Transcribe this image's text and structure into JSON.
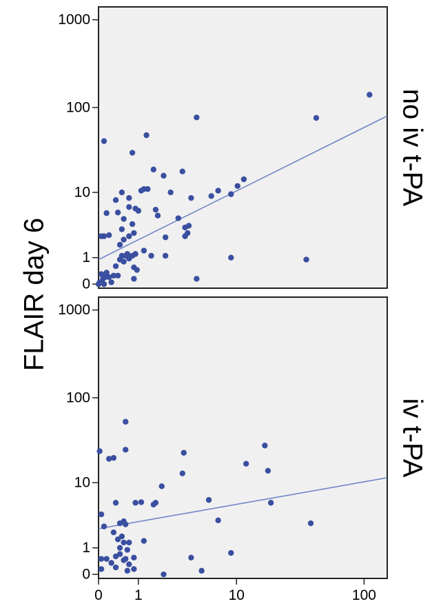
{
  "chart_data": {
    "type": "scatter",
    "ylabel": "FLAIR day 6",
    "xlabel": "",
    "x_scale": "log1p",
    "y_scale": "log1p",
    "xlim": [
      0,
      150
    ],
    "ylim": [
      -0.1,
      1400
    ],
    "x_ticks": [
      0,
      1,
      10,
      100
    ],
    "x_tick_labels": [
      "0",
      "1",
      "10",
      "100"
    ],
    "y_ticks": [
      0,
      1,
      10,
      100,
      1000
    ],
    "y_tick_labels": [
      "0",
      "1",
      "10",
      "100",
      "1000"
    ],
    "grid": false,
    "marker_color": "#3a4fa0",
    "line_color": "#6f85c8",
    "panel_background": "#f0f0f0",
    "panels": [
      {
        "label": "no iv t-PA",
        "fit_line": [
          [
            0,
            0.9
          ],
          [
            150,
            80
          ]
        ],
        "points": [
          [
            0,
            0
          ],
          [
            0.02,
            0.05
          ],
          [
            0.05,
            0.3
          ],
          [
            0.08,
            0.15
          ],
          [
            0.1,
            0
          ],
          [
            0.12,
            0.2
          ],
          [
            0.15,
            0.35
          ],
          [
            0.2,
            0.2
          ],
          [
            0.25,
            0.05
          ],
          [
            0.3,
            0.25
          ],
          [
            0.35,
            0.6
          ],
          [
            0.4,
            0.25
          ],
          [
            0.45,
            0.9
          ],
          [
            0.5,
            1.1
          ],
          [
            0.55,
            0.8
          ],
          [
            0.6,
            1.1
          ],
          [
            0.65,
            1.2
          ],
          [
            0.7,
            0.95
          ],
          [
            0.8,
            1.1
          ],
          [
            0.85,
            0.55
          ],
          [
            0.85,
            0.15
          ],
          [
            0.95,
            0.45
          ],
          [
            0.9,
            1.2
          ],
          [
            0.1,
            2.5
          ],
          [
            0.2,
            2.6
          ],
          [
            0.05,
            2.5
          ],
          [
            0.45,
            1.8
          ],
          [
            0.55,
            2.2
          ],
          [
            0.7,
            2.5
          ],
          [
            0.5,
            3.2
          ],
          [
            0.85,
            2.8
          ],
          [
            0.15,
            5.4
          ],
          [
            0.4,
            5.5
          ],
          [
            0.55,
            4.5
          ],
          [
            0.7,
            6.5
          ],
          [
            0.8,
            3.8
          ],
          [
            0.9,
            6.2
          ],
          [
            1.0,
            5.8
          ],
          [
            0.35,
            8.0
          ],
          [
            0.5,
            10.0
          ],
          [
            0.7,
            8.5
          ],
          [
            0.1,
            41
          ],
          [
            0.8,
            30
          ],
          [
            1.3,
            48
          ],
          [
            1.6,
            19
          ],
          [
            2.1,
            16
          ],
          [
            1.2,
            11
          ],
          [
            1.1,
            10.5
          ],
          [
            1.35,
            11
          ],
          [
            1.5,
            1.1
          ],
          [
            1.2,
            1.4
          ],
          [
            1.7,
            6
          ],
          [
            1.8,
            5
          ],
          [
            2.2,
            2.4
          ],
          [
            2.2,
            1.1
          ],
          [
            2.5,
            10
          ],
          [
            3.0,
            4.6
          ],
          [
            3.3,
            18
          ],
          [
            3.5,
            3.4
          ],
          [
            3.5,
            2.5
          ],
          [
            3.7,
            2.8
          ],
          [
            3.8,
            3.6
          ],
          [
            4.0,
            8.5
          ],
          [
            4.5,
            0.15
          ],
          [
            4.5,
            77
          ],
          [
            6.1,
            9.0
          ],
          [
            7.0,
            10.5
          ],
          [
            9.0,
            9.5
          ],
          [
            10.2,
            12
          ],
          [
            11.5,
            14.5
          ],
          [
            9.0,
            1.0
          ],
          [
            36.0,
            0.9
          ],
          [
            43.0,
            76
          ],
          [
            110.0,
            140
          ]
        ]
      },
      {
        "label": "iv t-PA",
        "fit_line": [
          [
            0,
            2.3
          ],
          [
            150,
            11.5
          ]
        ],
        "points": [
          [
            0.02,
            24
          ],
          [
            0.2,
            19.5
          ],
          [
            0.3,
            20
          ],
          [
            0.05,
            3.8
          ],
          [
            0.1,
            2.5
          ],
          [
            0.3,
            2.0
          ],
          [
            0.35,
            5.5
          ],
          [
            0.4,
            1.5
          ],
          [
            0.45,
            2.8
          ],
          [
            0.55,
            3.0
          ],
          [
            0.6,
            2.7
          ],
          [
            0.55,
            1.3
          ],
          [
            0.5,
            1.7
          ],
          [
            0.45,
            0.7
          ],
          [
            0.35,
            0.6
          ],
          [
            0.25,
            0.35
          ],
          [
            0.15,
            0.5
          ],
          [
            0.05,
            0.5
          ],
          [
            0.05,
            0.15
          ],
          [
            0.35,
            0.2
          ],
          [
            0.45,
            1.0
          ],
          [
            0.55,
            0.45
          ],
          [
            0.6,
            0.5
          ],
          [
            0.65,
            0.1
          ],
          [
            0.65,
            0.9
          ],
          [
            0.7,
            0.3
          ],
          [
            0.85,
            0.55
          ],
          [
            0.85,
            0.15
          ],
          [
            0.7,
            1.3
          ],
          [
            0.6,
            25
          ],
          [
            0.6,
            53
          ],
          [
            0.9,
            5.5
          ],
          [
            1.1,
            5.6
          ],
          [
            1.2,
            1.4
          ],
          [
            1.6,
            5.2
          ],
          [
            1.7,
            5.5
          ],
          [
            2.0,
            9.0
          ],
          [
            2.1,
            0.0
          ],
          [
            3.3,
            13
          ],
          [
            3.4,
            23
          ],
          [
            4.0,
            0.55
          ],
          [
            5.0,
            0.1
          ],
          [
            5.8,
            6.0
          ],
          [
            7.0,
            3.1
          ],
          [
            9.0,
            0.75
          ],
          [
            12.0,
            17
          ],
          [
            17.0,
            28
          ],
          [
            18.0,
            14
          ],
          [
            19.0,
            5.5
          ],
          [
            39.0,
            2.8
          ]
        ]
      }
    ]
  }
}
